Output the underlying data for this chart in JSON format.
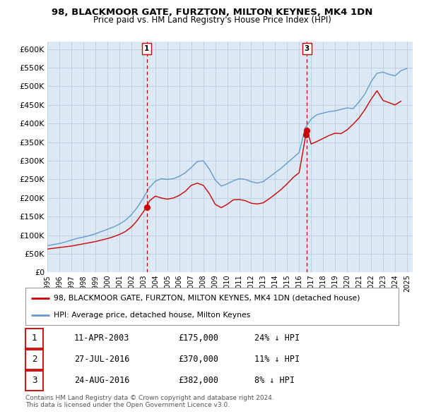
{
  "title": "98, BLACKMOOR GATE, FURZTON, MILTON KEYNES, MK4 1DN",
  "subtitle": "Price paid vs. HM Land Registry's House Price Index (HPI)",
  "legend_line1": "98, BLACKMOOR GATE, FURZTON, MILTON KEYNES, MK4 1DN (detached house)",
  "legend_line2": "HPI: Average price, detached house, Milton Keynes",
  "footnote1": "Contains HM Land Registry data © Crown copyright and database right 2024.",
  "footnote2": "This data is licensed under the Open Government Licence v3.0.",
  "sale_color": "#cc0000",
  "hpi_color": "#6699cc",
  "marker_vline_color": "#cc0000",
  "background_color": "#ffffff",
  "chart_bg_color": "#dce9f5",
  "grid_color": "#b8cfe0",
  "ylim": [
    0,
    620000
  ],
  "yticks": [
    0,
    50000,
    100000,
    150000,
    200000,
    250000,
    300000,
    350000,
    400000,
    450000,
    500000,
    550000,
    600000
  ],
  "xlim_start": 1995.0,
  "xlim_end": 2025.5,
  "sale_transactions": [
    {
      "year": 2003.28,
      "price": 175000,
      "label": "1"
    },
    {
      "year": 2016.56,
      "price": 370000,
      "label": "2"
    },
    {
      "year": 2016.65,
      "price": 382000,
      "label": "3"
    }
  ],
  "vline_labels": [
    {
      "year": 2003.28,
      "label": "1"
    },
    {
      "year": 2016.65,
      "label": "3"
    }
  ],
  "table_rows": [
    {
      "num": "1",
      "date": "11-APR-2003",
      "price": "£175,000",
      "pct": "24% ↓ HPI"
    },
    {
      "num": "2",
      "date": "27-JUL-2016",
      "price": "£370,000",
      "pct": "11% ↓ HPI"
    },
    {
      "num": "3",
      "date": "24-AUG-2016",
      "price": "£382,000",
      "pct": "8% ↓ HPI"
    }
  ],
  "hpi_years": [
    1995.0,
    1995.5,
    1996.0,
    1996.5,
    1997.0,
    1997.5,
    1998.0,
    1998.5,
    1999.0,
    1999.5,
    2000.0,
    2000.5,
    2001.0,
    2001.5,
    2002.0,
    2002.5,
    2003.0,
    2003.5,
    2004.0,
    2004.5,
    2005.0,
    2005.5,
    2006.0,
    2006.5,
    2007.0,
    2007.5,
    2008.0,
    2008.5,
    2009.0,
    2009.5,
    2010.0,
    2010.5,
    2011.0,
    2011.5,
    2012.0,
    2012.5,
    2013.0,
    2013.5,
    2014.0,
    2014.5,
    2015.0,
    2015.5,
    2016.0,
    2016.5,
    2017.0,
    2017.5,
    2018.0,
    2018.5,
    2019.0,
    2019.5,
    2020.0,
    2020.5,
    2021.0,
    2021.5,
    2022.0,
    2022.5,
    2023.0,
    2023.5,
    2024.0,
    2024.5,
    2025.0
  ],
  "hpi_vals": [
    72000,
    75000,
    78000,
    82000,
    87000,
    92000,
    95000,
    99000,
    104000,
    110000,
    116000,
    122000,
    130000,
    140000,
    155000,
    175000,
    200000,
    228000,
    245000,
    252000,
    250000,
    252000,
    258000,
    268000,
    282000,
    298000,
    300000,
    278000,
    248000,
    232000,
    238000,
    246000,
    252000,
    250000,
    244000,
    240000,
    244000,
    256000,
    268000,
    280000,
    294000,
    308000,
    322000,
    388000,
    412000,
    424000,
    428000,
    432000,
    434000,
    438000,
    442000,
    440000,
    458000,
    480000,
    512000,
    535000,
    538000,
    532000,
    528000,
    542000,
    548000
  ],
  "sp_years": [
    1995.0,
    1995.5,
    1996.0,
    1996.5,
    1997.0,
    1997.5,
    1998.0,
    1998.5,
    1999.0,
    1999.5,
    2000.0,
    2000.5,
    2001.0,
    2001.5,
    2002.0,
    2002.5,
    2003.0,
    2003.28,
    2003.5,
    2004.0,
    2004.5,
    2005.0,
    2005.5,
    2006.0,
    2006.5,
    2007.0,
    2007.5,
    2008.0,
    2008.5,
    2009.0,
    2009.5,
    2010.0,
    2010.5,
    2011.0,
    2011.5,
    2012.0,
    2012.5,
    2013.0,
    2013.5,
    2014.0,
    2014.5,
    2015.0,
    2015.5,
    2016.0,
    2016.56,
    2016.65,
    2017.0,
    2017.5,
    2018.0,
    2018.5,
    2019.0,
    2019.5,
    2020.0,
    2020.5,
    2021.0,
    2021.5,
    2022.0,
    2022.5,
    2023.0,
    2023.5,
    2024.0,
    2024.5
  ],
  "sp_vals": [
    63000,
    65000,
    67000,
    69000,
    71000,
    74000,
    77000,
    80000,
    83000,
    87000,
    91000,
    96000,
    102000,
    110000,
    122000,
    140000,
    163000,
    175000,
    192000,
    205000,
    200000,
    197000,
    200000,
    207000,
    218000,
    234000,
    240000,
    234000,
    212000,
    183000,
    174000,
    183000,
    195000,
    196000,
    193000,
    186000,
    184000,
    187000,
    198000,
    210000,
    223000,
    238000,
    255000,
    268000,
    370000,
    382000,
    345000,
    352000,
    360000,
    368000,
    374000,
    373000,
    383000,
    398000,
    415000,
    438000,
    465000,
    488000,
    462000,
    456000,
    450000,
    460000
  ]
}
